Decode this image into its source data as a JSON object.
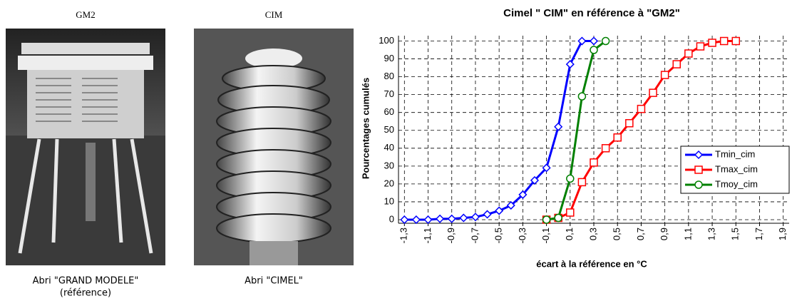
{
  "photos": [
    {
      "label": "GM2",
      "caption": [
        "Abri \"GRAND MODELE\"",
        "(référence)"
      ]
    },
    {
      "label": "CIM",
      "caption": [
        "Abri \"CIMEL\""
      ]
    }
  ],
  "chart_data": {
    "type": "line",
    "title": "Cimel \" CIM\" en référence à \"GM2\"",
    "x_label": "écart à la référence en °C",
    "y_label": "Pourcentages cumulés",
    "xlim": [
      -1.35,
      1.95
    ],
    "ylim": [
      -2,
      103
    ],
    "xticks": [
      {
        "value": -1.3,
        "label": "-1,3"
      },
      {
        "value": -1.1,
        "label": "-1,1"
      },
      {
        "value": -0.9,
        "label": "-0,9"
      },
      {
        "value": -0.7,
        "label": "-0,7"
      },
      {
        "value": -0.5,
        "label": "-0,5"
      },
      {
        "value": -0.3,
        "label": "-0,3"
      },
      {
        "value": -0.1,
        "label": "-0,1"
      },
      {
        "value": 0.1,
        "label": "0,1"
      },
      {
        "value": 0.3,
        "label": "0,3"
      },
      {
        "value": 0.5,
        "label": "0,5"
      },
      {
        "value": 0.7,
        "label": "0,7"
      },
      {
        "value": 0.9,
        "label": "0,9"
      },
      {
        "value": 1.1,
        "label": "1,1"
      },
      {
        "value": 1.3,
        "label": "1,3"
      },
      {
        "value": 1.5,
        "label": "1,5"
      },
      {
        "value": 1.7,
        "label": "1,7"
      },
      {
        "value": 1.9,
        "label": "1,9"
      }
    ],
    "yticks": [
      0,
      10,
      20,
      30,
      40,
      50,
      60,
      70,
      80,
      90,
      100
    ],
    "grid": true,
    "legend": "right",
    "series": [
      {
        "name": "Tmin_cim",
        "color": "#0000ff",
        "marker": "diamond",
        "x": [
          -1.3,
          -1.2,
          -1.1,
          -1.0,
          -0.9,
          -0.8,
          -0.7,
          -0.6,
          -0.5,
          -0.4,
          -0.3,
          -0.2,
          -0.1,
          0.0,
          0.1,
          0.2,
          0.3
        ],
        "values": [
          0,
          0,
          0,
          0.5,
          0.5,
          1,
          1.5,
          3,
          5,
          8,
          14,
          22,
          29,
          52,
          87,
          100,
          100
        ]
      },
      {
        "name": "Tmax_cim",
        "color": "#ff0000",
        "marker": "square",
        "x": [
          -0.1,
          0.0,
          0.1,
          0.2,
          0.3,
          0.4,
          0.5,
          0.6,
          0.7,
          0.8,
          0.9,
          1.0,
          1.1,
          1.2,
          1.3,
          1.4,
          1.5
        ],
        "values": [
          0,
          1,
          4,
          21,
          32,
          40,
          46,
          54,
          62,
          71,
          81,
          87,
          93,
          97,
          99,
          100,
          100
        ]
      },
      {
        "name": "Tmoy_cim",
        "color": "#008000",
        "marker": "circle",
        "x": [
          -0.1,
          0.0,
          0.1,
          0.2,
          0.3,
          0.4
        ],
        "values": [
          0,
          1,
          23,
          69,
          95,
          100
        ]
      }
    ]
  }
}
